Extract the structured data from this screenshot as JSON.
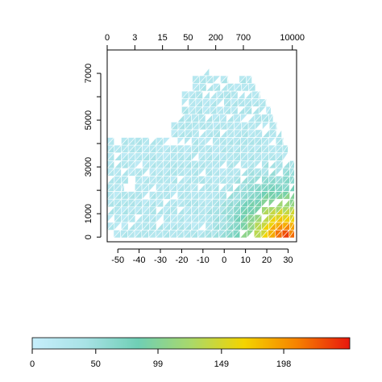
{
  "chart_data": {
    "type": "heatmap",
    "cell_shape": "split-triangles",
    "title": "",
    "xlabel": "",
    "ylabel": "",
    "x_axis": {
      "ticks": [
        -50,
        -40,
        -30,
        -20,
        -10,
        0,
        10,
        20,
        30
      ],
      "tick_labels": [
        "-50",
        "-40",
        "-30",
        "-20",
        "-10",
        "0",
        "10",
        "20",
        "30"
      ],
      "range": [
        -55,
        34
      ]
    },
    "y_axis": {
      "ticks": [
        0,
        1000,
        3000,
        5000,
        7000
      ],
      "tick_labels": [
        "0",
        "1000",
        "3000",
        "5000",
        "7000"
      ],
      "range": [
        -200,
        8000
      ]
    },
    "top_axis": {
      "ticks": [
        0,
        3,
        15,
        50,
        200,
        700,
        10000
      ],
      "tick_labels": [
        "0",
        "3",
        "15",
        "50",
        "200",
        "700",
        "10000"
      ],
      "positions_x": [
        -55,
        -42,
        -29,
        -17,
        -4,
        9,
        32
      ]
    },
    "grid": false,
    "bin_width_x": 3.3,
    "bin_height_y": 330,
    "colorbar": {
      "placement": "bottom",
      "min": 0,
      "max": 250,
      "ticks": [
        0,
        50,
        99,
        149,
        198
      ],
      "tick_labels": [
        "0",
        "50",
        "99",
        "149",
        "198"
      ],
      "colors": [
        "#c6eefb",
        "#a8e2e6",
        "#6fcfb5",
        "#a9d96a",
        "#f4d400",
        "#f68200",
        "#e8170e"
      ]
    },
    "rows": [
      {
        "y_min": 6900,
        "x_ranges": [
          [
            -10,
            -7
          ]
        ]
      },
      {
        "y_min": 6570,
        "x_ranges": [
          [
            -15,
            2
          ],
          [
            7,
            13
          ]
        ]
      },
      {
        "y_min": 6240,
        "x_ranges": [
          [
            -15,
            15
          ]
        ]
      },
      {
        "y_min": 5910,
        "x_ranges": [
          [
            -20,
            17
          ]
        ]
      },
      {
        "y_min": 5580,
        "x_ranges": [
          [
            -20,
            20
          ]
        ]
      },
      {
        "y_min": 5250,
        "x_ranges": [
          [
            -20,
            22
          ]
        ]
      },
      {
        "y_min": 4920,
        "x_ranges": [
          [
            -22,
            23
          ]
        ]
      },
      {
        "y_min": 4590,
        "x_ranges": [
          [
            -25,
            25
          ]
        ]
      },
      {
        "y_min": 4260,
        "x_ranges": [
          [
            -25,
            27
          ]
        ]
      },
      {
        "y_min": 3930,
        "x_ranges": [
          [
            -55,
            -25
          ],
          [
            -22,
            28
          ]
        ]
      },
      {
        "y_min": 3600,
        "x_ranges": [
          [
            -55,
            30
          ]
        ]
      },
      {
        "y_min": 3270,
        "x_ranges": [
          [
            -55,
            30
          ]
        ]
      },
      {
        "y_min": 2940,
        "x_ranges": [
          [
            -55,
            33
          ]
        ]
      },
      {
        "y_min": 2610,
        "x_ranges": [
          [
            -55,
            33
          ]
        ]
      },
      {
        "y_min": 2280,
        "x_ranges": [
          [
            -55,
            33
          ]
        ]
      },
      {
        "y_min": 1950,
        "x_ranges": [
          [
            -55,
            -47
          ],
          [
            -42,
            33
          ]
        ]
      },
      {
        "y_min": 1620,
        "x_ranges": [
          [
            -55,
            33
          ]
        ]
      },
      {
        "y_min": 1290,
        "x_ranges": [
          [
            -55,
            33
          ]
        ]
      },
      {
        "y_min": 960,
        "x_ranges": [
          [
            -55,
            33
          ]
        ]
      },
      {
        "y_min": 630,
        "x_ranges": [
          [
            -55,
            33
          ]
        ]
      },
      {
        "y_min": 300,
        "x_ranges": [
          [
            -55,
            33
          ]
        ]
      },
      {
        "y_min": -30,
        "x_ranges": [
          [
            -52,
            33
          ]
        ]
      }
    ],
    "value_model": {
      "description_of_mapping": "cell value on the colour scale; higher near the warm bottom-right corner",
      "peak_x": 28,
      "peak_y": 0,
      "peak_value": 240,
      "base_value": 20
    }
  }
}
